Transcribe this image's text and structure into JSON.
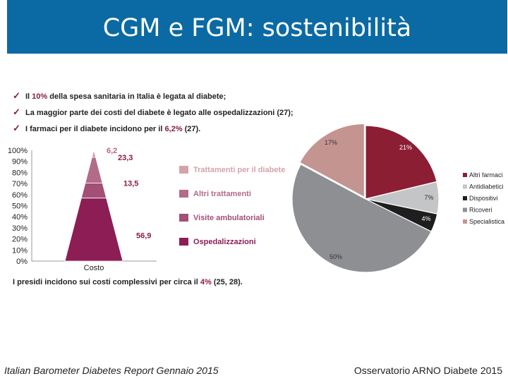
{
  "header": {
    "title": "CGM e FGM: sostenibilità"
  },
  "bullets": [
    {
      "pre": "Il ",
      "hl": "10%",
      "post": " della spesa sanitaria in Italia è legata al diabete;"
    },
    {
      "pre": "La maggior parte dei costi del diabete è legato alle ospedalizzazioni (27);",
      "hl": "",
      "post": ""
    },
    {
      "pre": "I farmaci per il diabete incidono per il ",
      "hl": "6,2%",
      "post": " (27)."
    }
  ],
  "footnote": {
    "pre": "I presidi incidono sui costi complessivi per circa il ",
    "hl": "4%",
    "post": " (25, 28)."
  },
  "footer": {
    "left": "Italian Barometer Diabetes Report  Gennaio 2015",
    "right": "Osservatorio ARNO Diabete 2015"
  },
  "colors": {
    "header": "#0b6aa3",
    "accent": "#8b1a45"
  },
  "chart_data": [
    {
      "type": "bar",
      "subtype": "stacked-pyramid",
      "categories": [
        "Costo"
      ],
      "xlabel": "Costo",
      "ylim": [
        0,
        100
      ],
      "yticks": [
        "0%",
        "10%",
        "20%",
        "30%",
        "40%",
        "50%",
        "60%",
        "70%",
        "80%",
        "90%",
        "100%"
      ],
      "series": [
        {
          "name": "Ospedalizzazioni",
          "value": 56.9,
          "label": "56,9",
          "color": "#8c1d55"
        },
        {
          "name": "Visite ambulatoriali",
          "value": 13.5,
          "label": "13,5",
          "color": "#a34f76"
        },
        {
          "name": "Altri trattamenti",
          "value": 23.3,
          "label": "23,3",
          "color": "#b36b8a"
        },
        {
          "name": "Trattamenti per il diabete",
          "value": 6.2,
          "label": "6,2",
          "color": "#c99aa6"
        }
      ],
      "legend": [
        {
          "name": "Trattamenti per il diabete",
          "color": "#d4a3aa"
        },
        {
          "name": "Altri trattamenti",
          "color": "#b36b8a"
        },
        {
          "name": "Visite ambulatoriali",
          "color": "#a34f76"
        },
        {
          "name": "Ospedalizzazioni",
          "color": "#8c1d55"
        }
      ]
    },
    {
      "type": "pie",
      "slices": [
        {
          "name": "Altri farmaci",
          "value": 21,
          "label": "21%",
          "color": "#8b1e33"
        },
        {
          "name": "Antidiabetici",
          "value": 7,
          "label": "7%",
          "color": "#c4c5c7"
        },
        {
          "name": "Dispositivi",
          "value": 4,
          "label": "4%",
          "color": "#1e1e1e"
        },
        {
          "name": "Ricoveri",
          "value": 50,
          "label": "50%",
          "color": "#8e8f92"
        },
        {
          "name": "Specialistica",
          "value": 17,
          "label": "17%",
          "color": "#c49491"
        }
      ],
      "legend": [
        "Altri farmaci",
        "Antidiabetici",
        "Dispositivi",
        "Ricoveri",
        "Specialistica"
      ]
    }
  ]
}
